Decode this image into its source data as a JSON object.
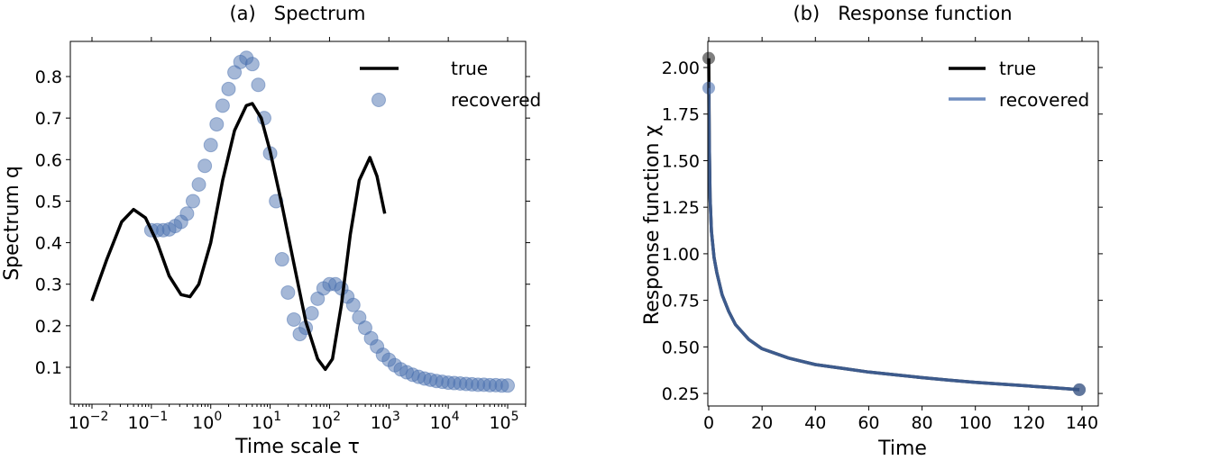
{
  "chart_data": [
    {
      "type": "line+scatter",
      "title": "(a)   Spectrum",
      "xlabel": "Time scale τ",
      "ylabel": "Spectrum q",
      "xscale": "log",
      "xlim_log10": [
        -2.35,
        5.25
      ],
      "ylim": [
        0.015,
        0.889
      ],
      "xticks": [
        {
          "log10": -2,
          "base": "10",
          "exp": "−2"
        },
        {
          "log10": -1,
          "base": "10",
          "exp": "−1"
        },
        {
          "log10": 0,
          "base": "10",
          "exp": "0"
        },
        {
          "log10": 1,
          "base": "10",
          "exp": "1"
        },
        {
          "log10": 2,
          "base": "10",
          "exp": "2"
        },
        {
          "log10": 3,
          "base": "10",
          "exp": "3"
        },
        {
          "log10": 4,
          "base": "10",
          "exp": "4"
        },
        {
          "log10": 5,
          "base": "10",
          "exp": "5"
        }
      ],
      "yticks": [
        "0.1",
        "0.2",
        "0.3",
        "0.4",
        "0.5",
        "0.6",
        "0.7",
        "0.8"
      ],
      "legend": {
        "placement": "top-right",
        "entries": [
          "true",
          "recovered"
        ]
      },
      "series": [
        {
          "name": "true",
          "style": "line",
          "color": "#000000",
          "log10_tau": [
            -2.0,
            -1.75,
            -1.5,
            -1.3,
            -1.1,
            -0.9,
            -0.7,
            -0.5,
            -0.35,
            -0.2,
            0.0,
            0.2,
            0.4,
            0.6,
            0.7,
            0.85,
            1.0,
            1.2,
            1.4,
            1.6,
            1.8,
            1.93,
            2.05,
            2.2,
            2.35,
            2.5,
            2.68,
            2.8,
            2.93
          ],
          "q": [
            0.26,
            0.36,
            0.45,
            0.48,
            0.46,
            0.4,
            0.32,
            0.275,
            0.27,
            0.3,
            0.4,
            0.55,
            0.67,
            0.73,
            0.735,
            0.7,
            0.62,
            0.49,
            0.35,
            0.21,
            0.12,
            0.095,
            0.12,
            0.25,
            0.42,
            0.55,
            0.605,
            0.56,
            0.47
          ]
        },
        {
          "name": "recovered",
          "style": "markers",
          "color": "#4c72b0",
          "log10_tau": [
            -1.0,
            -0.9,
            -0.8,
            -0.7,
            -0.6,
            -0.5,
            -0.4,
            -0.3,
            -0.2,
            -0.1,
            0.0,
            0.1,
            0.2,
            0.3,
            0.4,
            0.5,
            0.6,
            0.7,
            0.8,
            0.9,
            1.0,
            1.1,
            1.2,
            1.3,
            1.4,
            1.5,
            1.6,
            1.7,
            1.8,
            1.9,
            2.0,
            2.1,
            2.2,
            2.3,
            2.4,
            2.5,
            2.6,
            2.7,
            2.8,
            2.9,
            3.0,
            3.1,
            3.2,
            3.3,
            3.4,
            3.5,
            3.6,
            3.7,
            3.8,
            3.9,
            4.0,
            4.1,
            4.2,
            4.3,
            4.4,
            4.5,
            4.6,
            4.7,
            4.8,
            4.9,
            5.0
          ],
          "q": [
            0.43,
            0.43,
            0.43,
            0.432,
            0.44,
            0.45,
            0.47,
            0.5,
            0.54,
            0.585,
            0.635,
            0.685,
            0.73,
            0.77,
            0.81,
            0.835,
            0.845,
            0.83,
            0.78,
            0.7,
            0.615,
            0.5,
            0.36,
            0.28,
            0.215,
            0.18,
            0.195,
            0.23,
            0.265,
            0.29,
            0.3,
            0.3,
            0.29,
            0.27,
            0.25,
            0.22,
            0.195,
            0.17,
            0.15,
            0.13,
            0.118,
            0.105,
            0.095,
            0.088,
            0.082,
            0.077,
            0.073,
            0.07,
            0.067,
            0.065,
            0.063,
            0.062,
            0.061,
            0.06,
            0.059,
            0.058,
            0.058,
            0.057,
            0.057,
            0.056,
            0.056
          ]
        }
      ]
    },
    {
      "type": "line",
      "title": "(b)   Response function",
      "xlabel": "Time",
      "ylabel": "Response function χ",
      "xlim": [
        -0.5,
        146.5
      ],
      "ylim": [
        0.18,
        2.15
      ],
      "xticks": [
        "0",
        "20",
        "40",
        "60",
        "80",
        "100",
        "120",
        "140"
      ],
      "yticks": [
        "0.25",
        "0.50",
        "0.75",
        "1.00",
        "1.25",
        "1.50",
        "1.75",
        "2.00"
      ],
      "legend": {
        "placement": "top-right",
        "entries": [
          "true",
          "recovered"
        ]
      },
      "series": [
        {
          "name": "true",
          "color": "#000000",
          "t": [
            0,
            0.2,
            0.5,
            1,
            2,
            3,
            5,
            7.5,
            10,
            15,
            20,
            30,
            40,
            50,
            60,
            70,
            80,
            90,
            100,
            110,
            120,
            130,
            139
          ],
          "chi": [
            2.05,
            1.6,
            1.3,
            1.12,
            0.98,
            0.9,
            0.78,
            0.69,
            0.62,
            0.54,
            0.49,
            0.44,
            0.405,
            0.385,
            0.365,
            0.35,
            0.335,
            0.322,
            0.31,
            0.3,
            0.29,
            0.28,
            0.27
          ]
        },
        {
          "name": "recovered",
          "color": "#4c72b0",
          "t": [
            0,
            0.2,
            0.5,
            1,
            2,
            3,
            5,
            7.5,
            10,
            15,
            20,
            30,
            40,
            50,
            60,
            70,
            80,
            90,
            100,
            110,
            120,
            130,
            139
          ],
          "chi": [
            1.89,
            1.6,
            1.3,
            1.12,
            0.98,
            0.9,
            0.78,
            0.69,
            0.62,
            0.54,
            0.49,
            0.44,
            0.405,
            0.385,
            0.365,
            0.35,
            0.335,
            0.322,
            0.31,
            0.3,
            0.29,
            0.28,
            0.27
          ]
        }
      ]
    }
  ]
}
